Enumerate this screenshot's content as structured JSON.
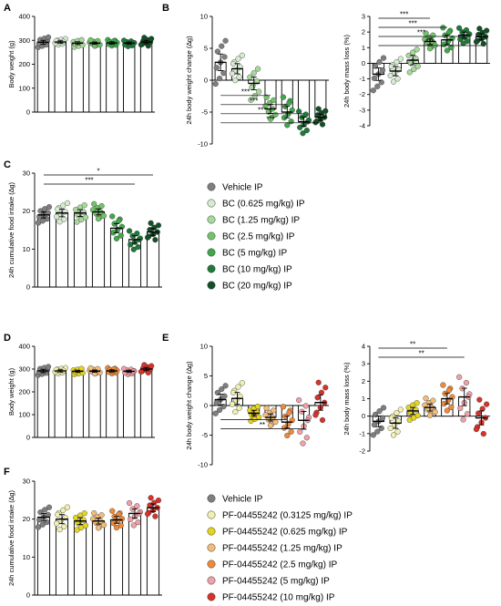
{
  "colors": {
    "blue": [
      "#7f7f7f",
      "#d6ecd0",
      "#a8d99b",
      "#72c46a",
      "#3ea84a",
      "#1e7a3a",
      "#134f27"
    ],
    "pf": [
      "#7f7f7f",
      "#f0f0b0",
      "#e6d51e",
      "#f2bd7a",
      "#ee8a3a",
      "#f0a0a8",
      "#d8322a"
    ]
  },
  "legend_top": [
    "Vehicle IP",
    "BC (0.625 mg/kg) IP",
    "BC (1.25 mg/kg) IP",
    "BC (2.5 mg/kg) IP",
    "BC (5 mg/kg) IP",
    "BC (10 mg/kg) IP",
    "BC (20 mg/kg) IP"
  ],
  "legend_bottom": [
    "Vehicle IP",
    "PF-04455242 (0.3125 mg/kg) IP",
    "PF-04455242 (0.625 mg/kg) IP",
    "PF-04455242 (1.25 mg/kg) IP",
    "PF-04455242 (2.5 mg/kg) IP",
    "PF-04455242 (5 mg/kg) IP",
    "PF-04455242 (10 mg/kg) IP"
  ],
  "chart_data": [
    {
      "panel": "A",
      "type": "bar",
      "ylabel": "Body weight (g)",
      "ylim": [
        0,
        400
      ],
      "yticks": [
        0,
        100,
        200,
        300,
        400
      ],
      "palette": "blue",
      "values": [
        292,
        293,
        288,
        288,
        289,
        288,
        293
      ],
      "errors": [
        8,
        5,
        6,
        5,
        5,
        5,
        7
      ],
      "sig": []
    },
    {
      "panel": "B",
      "type": "bar",
      "ylabel": "24h body weight change (∆g)",
      "ylim": [
        -10,
        10
      ],
      "yticks": [
        -10,
        -5,
        0,
        5,
        10
      ],
      "palette": "blue",
      "values": [
        2.8,
        1.8,
        -0.5,
        -4.5,
        -5,
        -6.5,
        -5.8
      ],
      "errors": [
        1.3,
        0.8,
        1.0,
        0.7,
        0.9,
        0.7,
        0.5
      ],
      "sig": [
        {
          "from": 0,
          "to": 4,
          "label": "***"
        },
        {
          "from": 0,
          "to": 5,
          "label": "***"
        },
        {
          "from": 0,
          "to": 6,
          "label": "***"
        },
        {
          "from": 0,
          "to": 7,
          "label": "***"
        }
      ]
    },
    {
      "panel": "B2",
      "type": "bar",
      "ylabel": "24h body mass loss (%)",
      "ylim": [
        -4,
        3
      ],
      "yticks": [
        -4,
        -3,
        -2,
        -1,
        0,
        1,
        2,
        3
      ],
      "palette": "blue",
      "values": [
        -0.7,
        -0.5,
        0.2,
        1.4,
        1.5,
        1.8,
        1.7
      ],
      "errors": [
        0.4,
        0.3,
        0.3,
        0.2,
        0.3,
        0.2,
        0.2
      ],
      "sig": [
        {
          "from": 0,
          "to": 4,
          "label": "***"
        },
        {
          "from": 0,
          "to": 5,
          "label": "***"
        },
        {
          "from": 0,
          "to": 6,
          "label": "***"
        },
        {
          "from": 0,
          "to": 7,
          "label": "***"
        }
      ]
    },
    {
      "panel": "C",
      "type": "bar",
      "ylabel": "24h cumulative food intake (∆g)",
      "ylim": [
        0,
        30
      ],
      "yticks": [
        0,
        10,
        20,
        30
      ],
      "palette": "blue",
      "values": [
        19,
        19.5,
        19.5,
        19.8,
        15.5,
        12.5,
        14.5
      ],
      "errors": [
        0.8,
        1.0,
        0.9,
        0.8,
        1.2,
        1.0,
        0.9
      ],
      "sig": [
        {
          "from": 0,
          "to": 7,
          "label": "*"
        },
        {
          "from": 0,
          "to": 6,
          "label": "***"
        }
      ]
    },
    {
      "panel": "D",
      "type": "bar",
      "ylabel": "Body weight (g)",
      "ylim": [
        0,
        400
      ],
      "yticks": [
        0,
        100,
        200,
        300,
        400
      ],
      "palette": "pf",
      "values": [
        292,
        292,
        290,
        291,
        292,
        290,
        300
      ],
      "errors": [
        7,
        5,
        5,
        5,
        5,
        5,
        7
      ],
      "sig": []
    },
    {
      "panel": "E",
      "type": "bar",
      "ylabel": "24h body weight change (∆g)",
      "ylim": [
        -10,
        10
      ],
      "yticks": [
        -10,
        -5,
        0,
        5,
        10
      ],
      "palette": "pf",
      "values": [
        1.0,
        1.2,
        -1.3,
        -2.0,
        -2.8,
        -2.5,
        0.5
      ],
      "errors": [
        0.9,
        1.0,
        0.5,
        0.6,
        1.0,
        1.5,
        1.3
      ],
      "sig": [
        {
          "from": 0,
          "to": 5,
          "label": "**"
        },
        {
          "from": 0,
          "to": 6,
          "label": "**"
        }
      ]
    },
    {
      "panel": "E2",
      "type": "bar",
      "ylabel": "24h body mass loss (%)",
      "ylim": [
        -2,
        4
      ],
      "yticks": [
        -2,
        -1,
        0,
        1,
        2,
        3,
        4
      ],
      "palette": "pf",
      "values": [
        -0.3,
        -0.4,
        0.3,
        0.5,
        1.0,
        1.1,
        -0.1
      ],
      "errors": [
        0.3,
        0.3,
        0.2,
        0.2,
        0.3,
        0.5,
        0.4
      ],
      "sig": [
        {
          "from": 0,
          "to": 5,
          "label": "**"
        },
        {
          "from": 0,
          "to": 6,
          "label": "**"
        }
      ]
    },
    {
      "panel": "F",
      "type": "bar",
      "ylabel": "24h cumulative food intake (∆g)",
      "ylim": [
        0,
        30
      ],
      "yticks": [
        0,
        10,
        20,
        30
      ],
      "palette": "pf",
      "values": [
        20.5,
        20,
        19.5,
        19.5,
        19.8,
        21.5,
        23
      ],
      "errors": [
        1.0,
        1.2,
        0.9,
        0.8,
        0.9,
        1.2,
        1.0
      ],
      "sig": []
    }
  ]
}
